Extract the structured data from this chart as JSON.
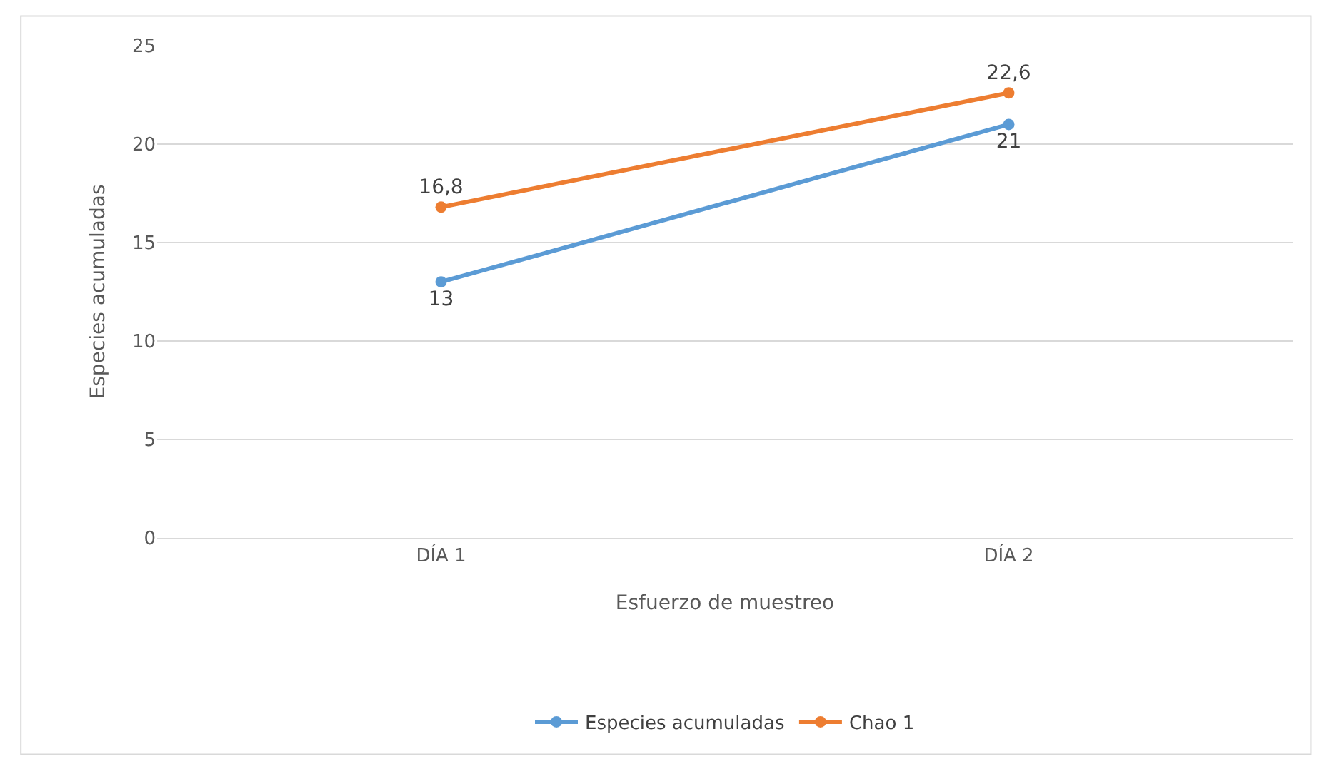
{
  "chart_data": {
    "type": "line",
    "xlabel": "Esfuerzo de muestreo",
    "ylabel": "Especies acumuladas",
    "categories": [
      "DÍA 1",
      "DÍA 2"
    ],
    "series": [
      {
        "name": "Especies acumuladas",
        "color": "#5b9bd5",
        "values": [
          13,
          21
        ],
        "value_labels": [
          "13",
          "21"
        ]
      },
      {
        "name": "Chao 1",
        "color": "#ed7d31",
        "values": [
          16.8,
          22.6
        ],
        "value_labels": [
          "16,8",
          "22,6"
        ]
      }
    ],
    "ylim": [
      0,
      25
    ],
    "yticks": [
      0,
      5,
      10,
      15,
      20,
      25
    ],
    "grid": "y",
    "legend": "bottom",
    "marker": "circle",
    "line_style": "solid"
  }
}
